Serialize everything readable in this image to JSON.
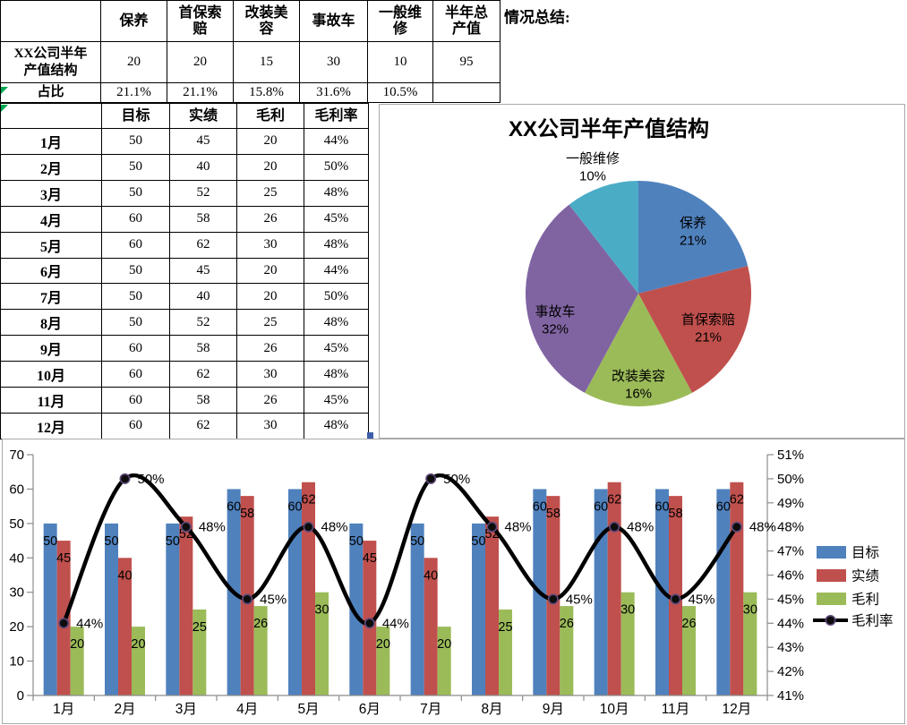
{
  "situation_summary_label": "情况总结:",
  "summary_table": {
    "columns": [
      "保养",
      "首保索赔",
      "改装美容",
      "事故车",
      "一般维修",
      "半年总产值"
    ],
    "row_label_lines": "XX公司半年\n产值结构",
    "values": [
      "20",
      "20",
      "15",
      "30",
      "10",
      "95"
    ],
    "ratio_label": "占比",
    "ratios": [
      "21.1%",
      "21.1%",
      "15.8%",
      "31.6%",
      "10.5%",
      ""
    ]
  },
  "monthly_table": {
    "columns": [
      "目标",
      "实绩",
      "毛利",
      "毛利率"
    ],
    "months": [
      "1月",
      "2月",
      "3月",
      "4月",
      "5月",
      "6月",
      "7月",
      "8月",
      "9月",
      "10月",
      "11月",
      "12月"
    ],
    "rows": [
      [
        "50",
        "45",
        "20",
        "44%"
      ],
      [
        "50",
        "40",
        "20",
        "50%"
      ],
      [
        "50",
        "52",
        "25",
        "48%"
      ],
      [
        "60",
        "58",
        "26",
        "45%"
      ],
      [
        "60",
        "62",
        "30",
        "48%"
      ],
      [
        "50",
        "45",
        "20",
        "44%"
      ],
      [
        "50",
        "40",
        "20",
        "50%"
      ],
      [
        "50",
        "52",
        "25",
        "48%"
      ],
      [
        "60",
        "58",
        "26",
        "45%"
      ],
      [
        "60",
        "62",
        "30",
        "48%"
      ],
      [
        "60",
        "58",
        "26",
        "45%"
      ],
      [
        "60",
        "62",
        "30",
        "48%"
      ]
    ]
  },
  "chart_data": [
    {
      "type": "pie",
      "title": "XX公司半年产值结构",
      "labels": [
        "保养",
        "首保索赔",
        "改装美容",
        "事故车",
        "一般维修"
      ],
      "values": [
        20,
        20,
        15,
        30,
        10
      ],
      "percent_labels": [
        "21%",
        "21%",
        "16%",
        "32%",
        "10%"
      ],
      "label_placement": [
        "inside",
        "inside",
        "inside",
        "inside",
        "outside"
      ],
      "colors": [
        "#4F81BD",
        "#C0504D",
        "#9BBB59",
        "#8064A2",
        "#4BACC6"
      ],
      "start_angle_deg": 0,
      "legend": "none"
    },
    {
      "type": "bar+line",
      "categories": [
        "1月",
        "2月",
        "3月",
        "4月",
        "5月",
        "6月",
        "7月",
        "8月",
        "9月",
        "10月",
        "11月",
        "12月"
      ],
      "series": [
        {
          "name": "目标",
          "type": "bar",
          "color": "#4F81BD",
          "values": [
            50,
            50,
            50,
            60,
            60,
            50,
            50,
            50,
            60,
            60,
            60,
            60
          ]
        },
        {
          "name": "实绩",
          "type": "bar",
          "color": "#C0504D",
          "values": [
            45,
            40,
            52,
            58,
            62,
            45,
            40,
            52,
            58,
            62,
            58,
            62
          ]
        },
        {
          "name": "毛利",
          "type": "bar",
          "color": "#9BBB59",
          "values": [
            20,
            20,
            25,
            26,
            30,
            20,
            20,
            25,
            26,
            30,
            26,
            30
          ]
        },
        {
          "name": "毛利率",
          "type": "line",
          "axis": "right",
          "color": "#000000",
          "marker_ring_color": "#604A7B",
          "values": [
            44,
            50,
            48,
            45,
            48,
            44,
            50,
            48,
            45,
            48,
            45,
            48
          ],
          "labels": [
            "44%",
            "50%",
            "48%",
            "45%",
            "48%",
            "44%",
            "50%",
            "48%",
            "45%",
            "48%",
            "45%",
            "48%"
          ]
        }
      ],
      "left_axis": {
        "min": 0,
        "max": 70,
        "step": 10,
        "ticks": [
          "0",
          "10",
          "20",
          "30",
          "40",
          "50",
          "60",
          "70"
        ]
      },
      "right_axis": {
        "min": 41,
        "max": 51,
        "step": 1,
        "ticks": [
          "41%",
          "42%",
          "43%",
          "44%",
          "45%",
          "46%",
          "47%",
          "48%",
          "49%",
          "50%",
          "51%"
        ]
      },
      "legend": [
        "目标",
        "实绩",
        "毛利",
        "毛利率"
      ],
      "legend_position": "right",
      "gridlines": false,
      "axis_color": "#8C8C8C"
    }
  ]
}
